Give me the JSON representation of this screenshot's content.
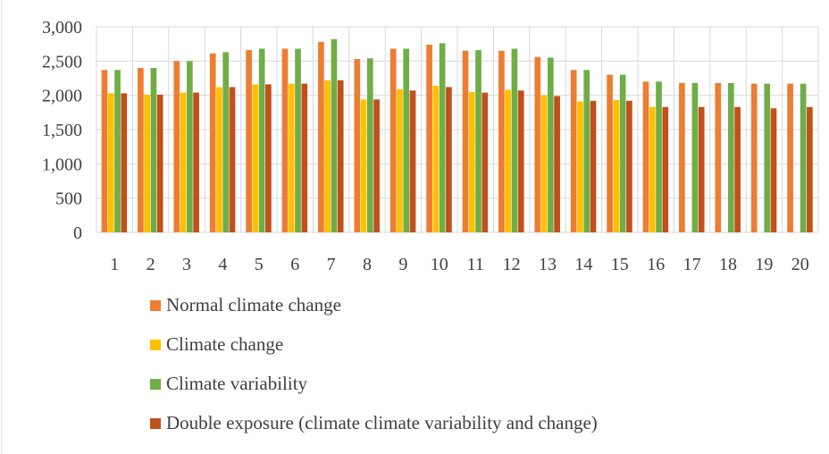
{
  "chart_data": {
    "type": "bar",
    "title": "",
    "xlabel": "",
    "ylabel": "",
    "ylim": [
      0,
      3000
    ],
    "yticks": [
      0,
      500,
      1000,
      1500,
      2000,
      2500,
      3000
    ],
    "ytick_labels": [
      "0",
      "500",
      "1,000",
      "1,500",
      "2,000",
      "2,500",
      "3,000"
    ],
    "grid": "horizontal",
    "legend_position": "bottom",
    "categories": [
      "1",
      "2",
      "3",
      "4",
      "5",
      "6",
      "7",
      "8",
      "9",
      "10",
      "11",
      "12",
      "13",
      "14",
      "15",
      "16",
      "17",
      "18",
      "19",
      "20"
    ],
    "series": [
      {
        "name": "Normal climate change",
        "color": "#ED7D31",
        "values": [
          2370,
          2400,
          2500,
          2610,
          2660,
          2680,
          2780,
          2530,
          2680,
          2740,
          2650,
          2650,
          2560,
          2370,
          2300,
          2200,
          2180,
          2180,
          2170,
          2170
        ]
      },
      {
        "name": "Climate change",
        "color": "#FFC000",
        "values": [
          2030,
          2010,
          2040,
          2120,
          2160,
          2170,
          2220,
          1940,
          2090,
          2140,
          2050,
          2080,
          2000,
          1910,
          1930,
          1830,
          null,
          null,
          null,
          null
        ]
      },
      {
        "name": "Climate variability",
        "color": "#70AD47",
        "values": [
          2370,
          2400,
          2500,
          2630,
          2680,
          2680,
          2820,
          2540,
          2680,
          2760,
          2660,
          2680,
          2550,
          2370,
          2300,
          2200,
          2180,
          2180,
          2170,
          2170
        ]
      },
      {
        "name": "Double exposure (climate climate variability and change)",
        "color": "#C0501C",
        "values": [
          2030,
          2010,
          2040,
          2120,
          2160,
          2170,
          2220,
          1940,
          2070,
          2120,
          2040,
          2070,
          1990,
          1920,
          1920,
          1830,
          1830,
          1830,
          1810,
          1830
        ]
      }
    ]
  }
}
